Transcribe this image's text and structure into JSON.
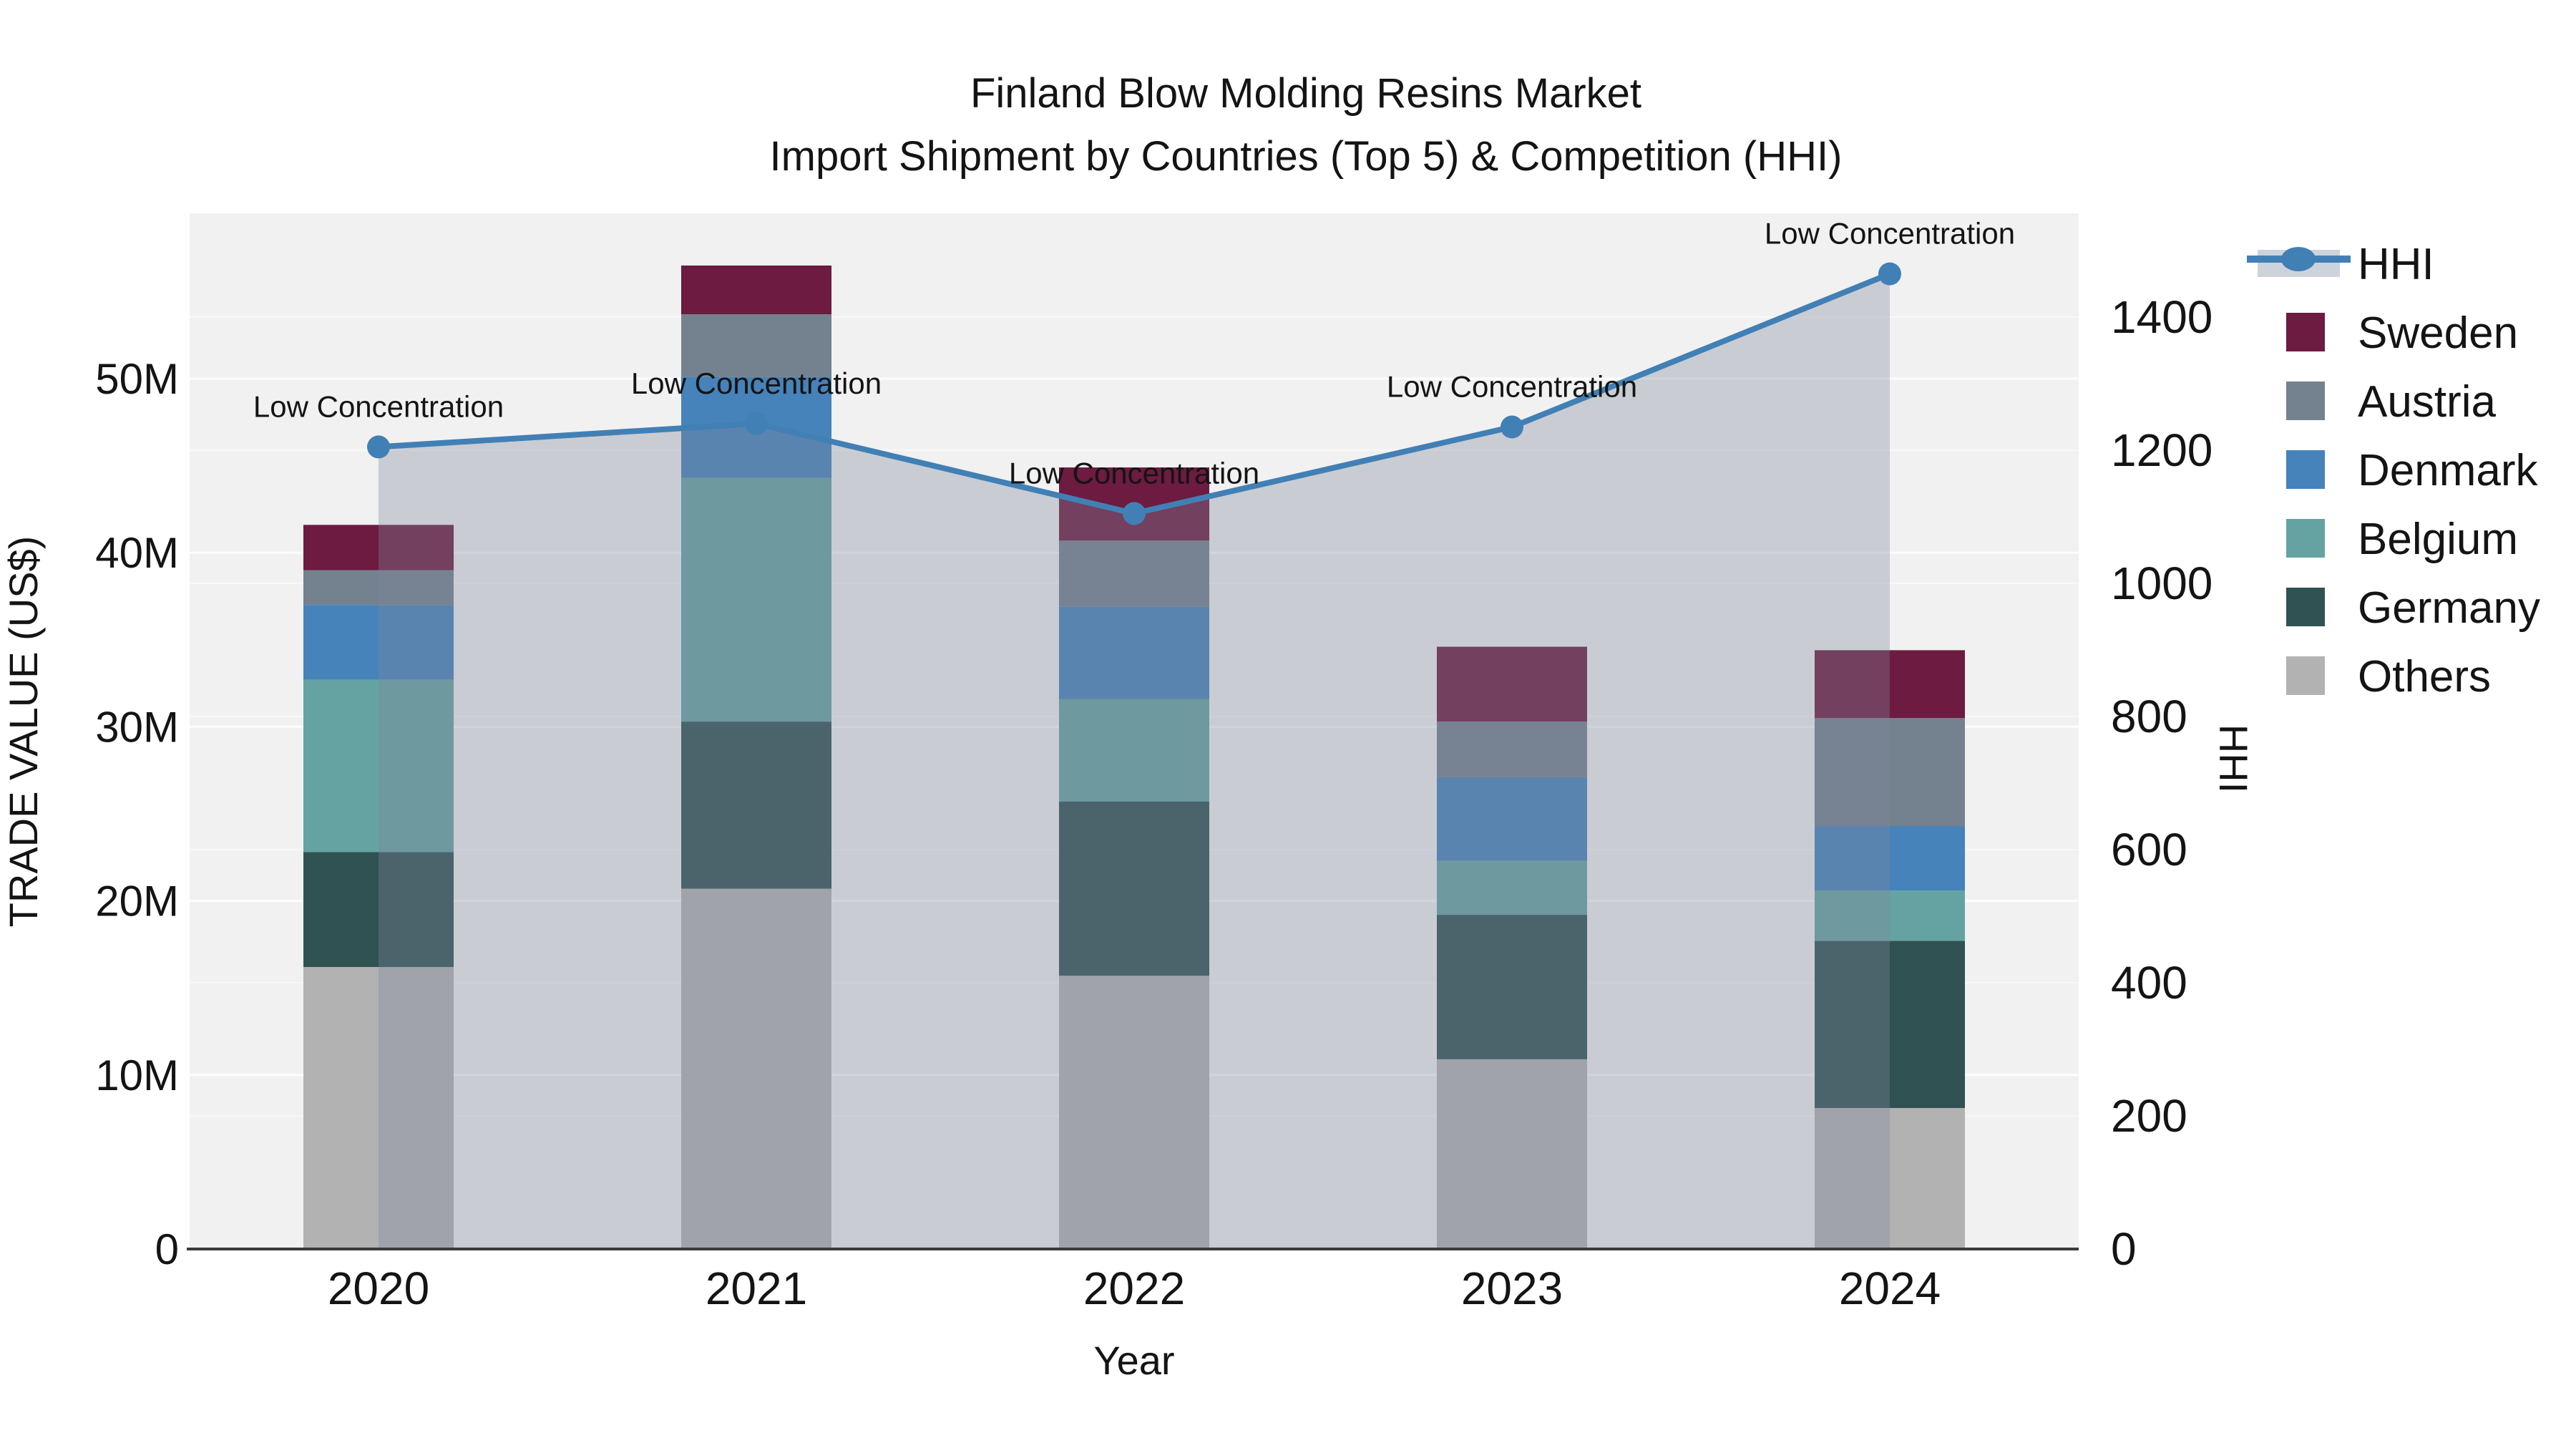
{
  "title": {
    "line1": "Finland Blow Molding Resins Market",
    "line2": "Import Shipment by Countries (Top 5) & Competition (HHI)"
  },
  "axes": {
    "x_label": "Year",
    "y_left_label": "TRADE VALUE (US$)",
    "y_right_label": "HHI",
    "y_left_ticks": [
      {
        "label": "0",
        "value": 0
      },
      {
        "label": "10M",
        "value": 10
      },
      {
        "label": "20M",
        "value": 20
      },
      {
        "label": "30M",
        "value": 30
      },
      {
        "label": "40M",
        "value": 40
      },
      {
        "label": "50M",
        "value": 50
      }
    ],
    "y_right_ticks": [
      {
        "label": "0",
        "value": 0
      },
      {
        "label": "200",
        "value": 200
      },
      {
        "label": "400",
        "value": 400
      },
      {
        "label": "600",
        "value": 600
      },
      {
        "label": "800",
        "value": 800
      },
      {
        "label": "1000",
        "value": 1000
      },
      {
        "label": "1200",
        "value": 1200
      },
      {
        "label": "1400",
        "value": 1400
      }
    ]
  },
  "chart_data": {
    "type": "bar",
    "subtype": "stacked bars (trade value, US$ millions) with HHI line + shaded area overlay",
    "categories": [
      "2020",
      "2021",
      "2022",
      "2023",
      "2024"
    ],
    "unit": "US$ millions",
    "series": [
      {
        "name": "Others",
        "color": "#b2b2b2",
        "values": [
          16.2,
          20.7,
          15.7,
          10.9,
          8.1
        ]
      },
      {
        "name": "Germany",
        "color": "#315253",
        "values": [
          6.6,
          9.6,
          10.0,
          8.3,
          9.6
        ]
      },
      {
        "name": "Belgium",
        "color": "#64a3a1",
        "values": [
          9.9,
          14.0,
          5.9,
          3.1,
          2.9
        ]
      },
      {
        "name": "Denmark",
        "color": "#4583ba",
        "values": [
          4.3,
          5.8,
          5.3,
          4.8,
          3.7
        ]
      },
      {
        "name": "Austria",
        "color": "#74818f",
        "values": [
          2.0,
          3.6,
          3.8,
          3.2,
          6.2
        ]
      },
      {
        "name": "Sweden",
        "color": "#6d1b40",
        "values": [
          2.6,
          2.8,
          4.2,
          4.3,
          3.9
        ]
      }
    ],
    "bar_totals": [
      41.6,
      56.5,
      44.9,
      34.6,
      34.4
    ],
    "line_series": {
      "name": "HHI",
      "color": "#4180b5",
      "area_fill": "rgba(125,135,155,0.35)",
      "legend_band_color": "#cdd3db",
      "values": [
        1205,
        1240,
        1105,
        1235,
        1465
      ]
    },
    "annotation_label": "Low Concentration",
    "y_left_max": 59.5,
    "y_right_max": 1556,
    "legend_order": [
      "HHI",
      "Sweden",
      "Austria",
      "Denmark",
      "Belgium",
      "Germany",
      "Others"
    ],
    "plot_background": "#f1f1f2",
    "axis_line_color": "#3a3a3a"
  }
}
